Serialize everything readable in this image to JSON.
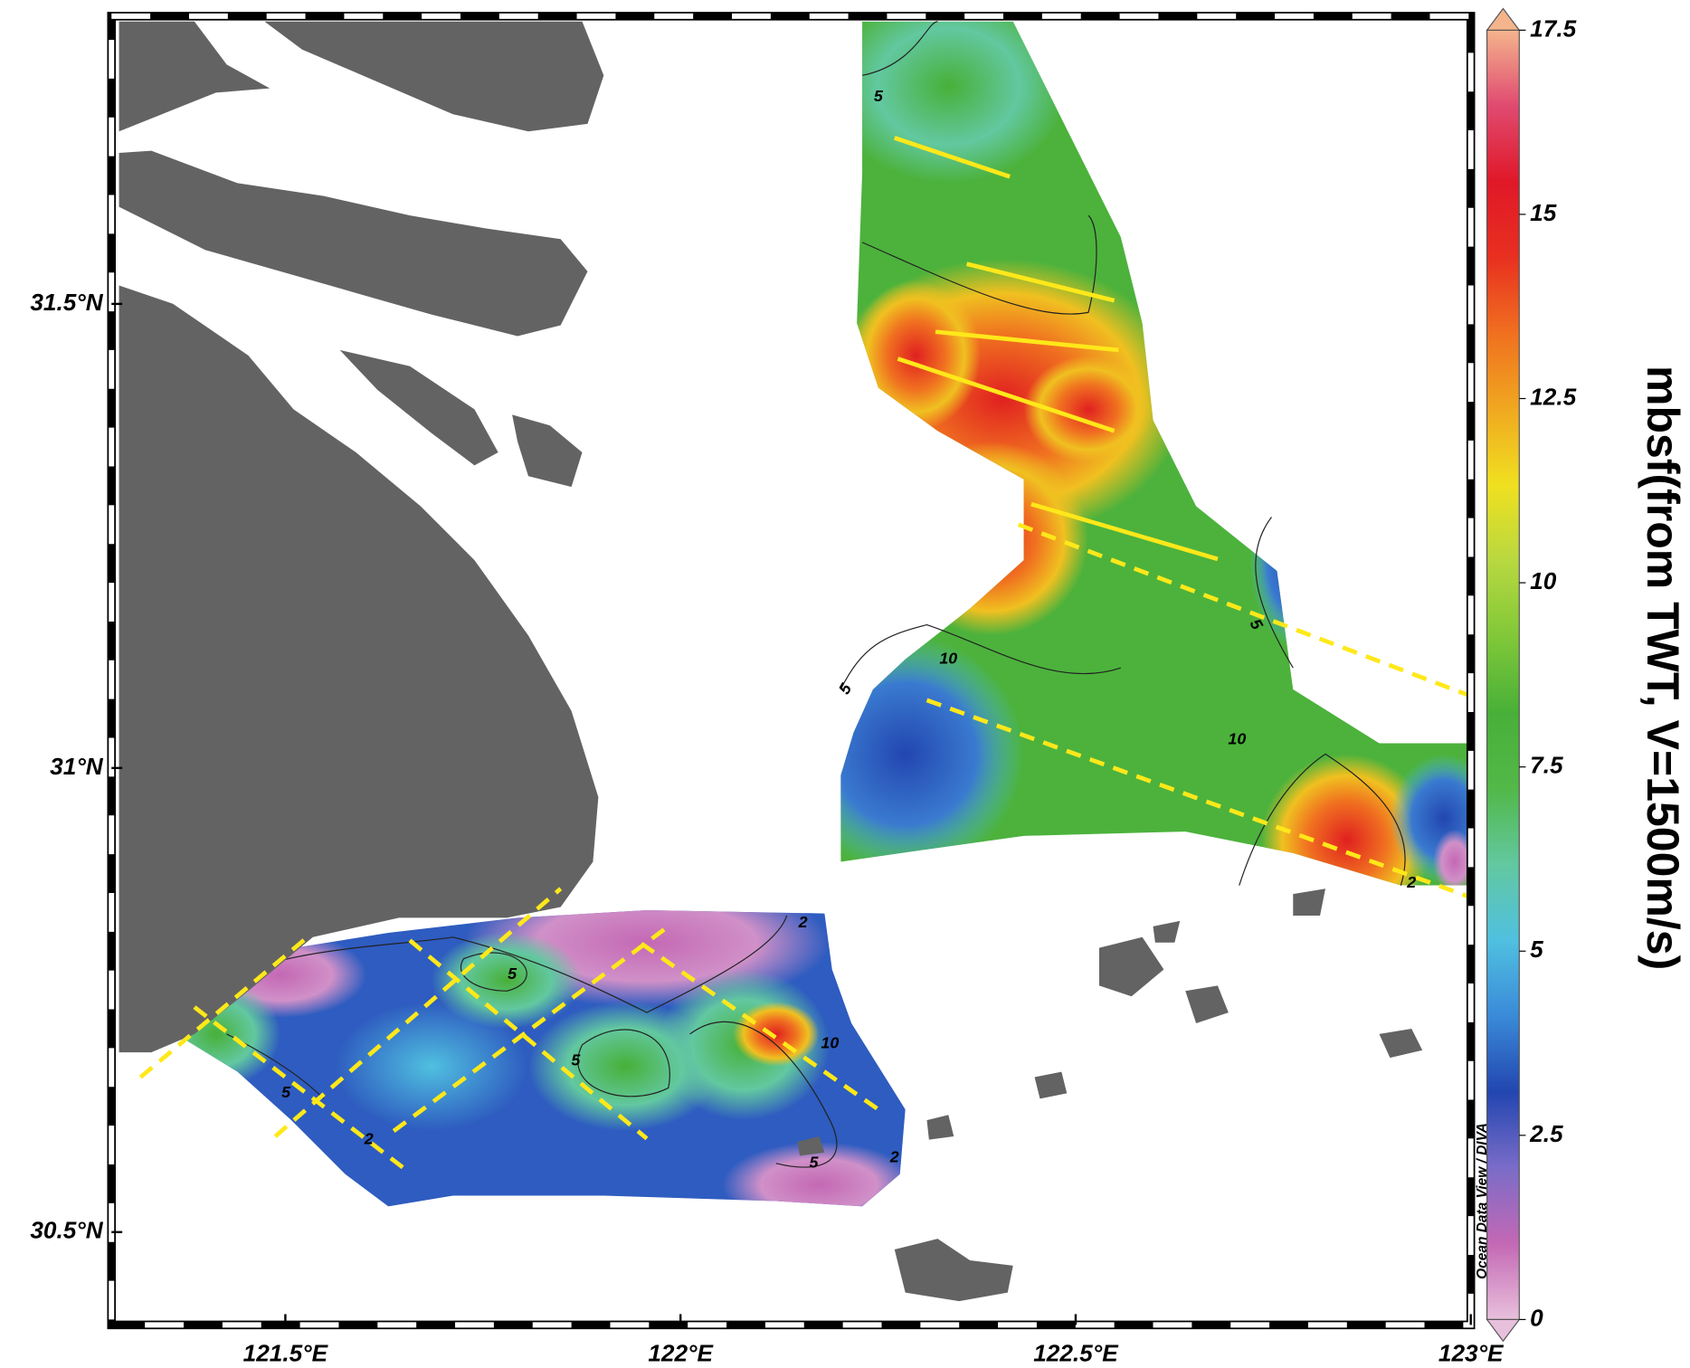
{
  "chart_data": {
    "type": "map",
    "xlim": [
      121.28,
      123.0
    ],
    "ylim": [
      30.4,
      31.81
    ],
    "xticks": [
      {
        "value": 121.5,
        "label": "121.5°E"
      },
      {
        "value": 122,
        "label": "122°E"
      },
      {
        "value": 122.5,
        "label": "122.5°E"
      },
      {
        "value": 123,
        "label": "123°E"
      }
    ],
    "yticks": [
      {
        "value": 30.5,
        "label": "30.5°N"
      },
      {
        "value": 31,
        "label": "31°N"
      },
      {
        "value": 31.5,
        "label": "31.5°N"
      }
    ],
    "colorbar": {
      "label": "mbsf(from TWT, V=1500m/s)",
      "clim": [
        0,
        17.5
      ],
      "ticks": [
        0,
        2.5,
        5,
        7.5,
        10,
        12.5,
        15,
        17.5
      ],
      "colormap": [
        "#e8c0dc",
        "#c468b4",
        "#7a6cc8",
        "#2246b0",
        "#3a8ad8",
        "#50c0e0",
        "#62c8a0",
        "#52b848",
        "#48b038",
        "#80c838",
        "#b8d840",
        "#f0e020",
        "#f0a820",
        "#f07020",
        "#e83020",
        "#e01828",
        "#e04a70",
        "#f4b48c"
      ]
    },
    "contour_labels": [
      "5",
      "10",
      "5",
      "5",
      "10",
      "2",
      "5",
      "5",
      "2",
      "5",
      "10",
      "5",
      "2",
      "2"
    ],
    "credit": "Ocean Data View / DIVA"
  }
}
